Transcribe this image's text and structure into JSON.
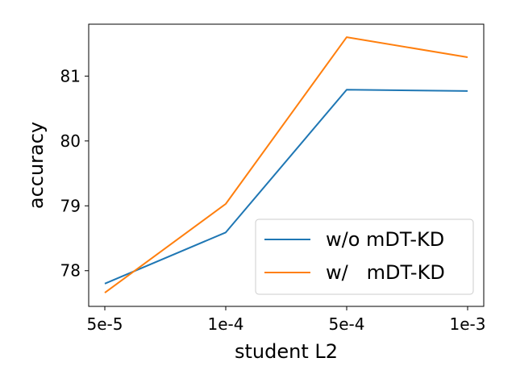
{
  "chart_data": {
    "type": "line",
    "title": "",
    "xlabel": "student L2",
    "ylabel": "accuracy",
    "categories": [
      "5e-5",
      "1e-4",
      "5e-4",
      "1e-3"
    ],
    "ylim": [
      77.45,
      81.8
    ],
    "yticks": [
      78,
      79,
      80,
      81
    ],
    "grid": false,
    "legend_position": "lower-right",
    "series": [
      {
        "name": "w/o mDT-KD",
        "color": "#1f77b4",
        "values": [
          77.8,
          78.59,
          80.79,
          80.77
        ]
      },
      {
        "name": "w/   mDT-KD",
        "color": "#ff7f0e",
        "values": [
          77.66,
          79.03,
          81.6,
          81.29
        ]
      }
    ]
  }
}
